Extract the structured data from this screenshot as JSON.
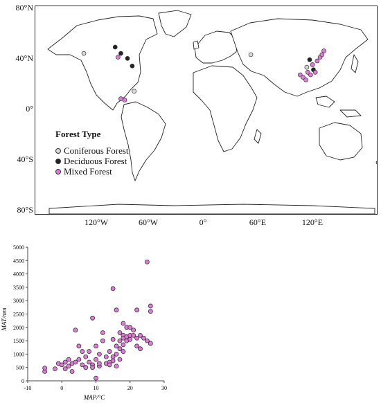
{
  "map": {
    "lat_labels": [
      "80°N",
      "40°N",
      "0°",
      "40°S",
      "80°S"
    ],
    "lon_labels": [
      "120°W",
      "60°W",
      "0°",
      "60°E",
      "120°E"
    ],
    "legend": {
      "title": "Forest Type",
      "items": [
        {
          "label": "Coniferous Forest",
          "color": "#d8d8d8"
        },
        {
          "label": "Deciduous Forest",
          "color": "#222222"
        },
        {
          "label": "Mixed Forest",
          "color": "#e07ad8"
        }
      ]
    },
    "sites": [
      {
        "type": "Coniferous Forest",
        "lon": -123,
        "lat": 45
      },
      {
        "type": "Coniferous Forest",
        "lon": -70,
        "lat": 15
      },
      {
        "type": "Coniferous Forest",
        "lon": 53,
        "lat": 44
      },
      {
        "type": "Coniferous Forest",
        "lon": 112,
        "lat": 34
      },
      {
        "type": "Deciduous Forest",
        "lon": -84,
        "lat": 45
      },
      {
        "type": "Deciduous Forest",
        "lon": -77,
        "lat": 41
      },
      {
        "type": "Deciduous Forest",
        "lon": -72,
        "lat": 35
      },
      {
        "type": "Deciduous Forest",
        "lon": -90,
        "lat": 50
      },
      {
        "type": "Deciduous Forest",
        "lon": 115,
        "lat": 40
      },
      {
        "type": "Deciduous Forest",
        "lon": 119,
        "lat": 32
      },
      {
        "type": "Mixed Forest",
        "lon": -87,
        "lat": 42
      },
      {
        "type": "Mixed Forest",
        "lon": -84,
        "lat": 9
      },
      {
        "type": "Mixed Forest",
        "lon": -80,
        "lat": 8
      },
      {
        "type": "Mixed Forest",
        "lon": 105,
        "lat": 28
      },
      {
        "type": "Mixed Forest",
        "lon": 108,
        "lat": 26
      },
      {
        "type": "Mixed Forest",
        "lon": 111,
        "lat": 24
      },
      {
        "type": "Mixed Forest",
        "lon": 113,
        "lat": 30
      },
      {
        "type": "Mixed Forest",
        "lon": 116,
        "lat": 28
      },
      {
        "type": "Mixed Forest",
        "lon": 118,
        "lat": 36
      },
      {
        "type": "Mixed Forest",
        "lon": 121,
        "lat": 30
      },
      {
        "type": "Mixed Forest",
        "lon": 123,
        "lat": 39
      },
      {
        "type": "Mixed Forest",
        "lon": 126,
        "lat": 42
      },
      {
        "type": "Mixed Forest",
        "lon": 128,
        "lat": 44
      },
      {
        "type": "Mixed Forest",
        "lon": 130,
        "lat": 47
      }
    ]
  },
  "chart_data": {
    "type": "scatter",
    "xlabel": "MAP/°C",
    "ylabel": "MAT/mm",
    "xlim": [
      -10,
      30
    ],
    "ylim": [
      0,
      5000
    ],
    "xticks": [
      "-10",
      "0",
      "10",
      "20",
      "30"
    ],
    "yticks": [
      "0",
      "500",
      "1000",
      "1500",
      "2000",
      "2500",
      "3000",
      "3500",
      "4000",
      "4500",
      "5000"
    ],
    "series": [
      {
        "color": "#e07ad8",
        "points": [
          [
            -5,
            350
          ],
          [
            -5,
            480
          ],
          [
            -2,
            450
          ],
          [
            -1,
            650
          ],
          [
            0,
            600
          ],
          [
            1,
            700
          ],
          [
            1,
            450
          ],
          [
            2,
            800
          ],
          [
            2,
            550
          ],
          [
            3,
            650
          ],
          [
            3,
            350
          ],
          [
            4,
            700
          ],
          [
            4,
            1900
          ],
          [
            5,
            800
          ],
          [
            5,
            1300
          ],
          [
            6,
            1100
          ],
          [
            6,
            600
          ],
          [
            7,
            900
          ],
          [
            7,
            500
          ],
          [
            8,
            1100
          ],
          [
            8,
            700
          ],
          [
            9,
            2350
          ],
          [
            9,
            600
          ],
          [
            9,
            500
          ],
          [
            10,
            1300
          ],
          [
            10,
            800
          ],
          [
            10,
            100
          ],
          [
            11,
            1000
          ],
          [
            11,
            550
          ],
          [
            11,
            650
          ],
          [
            12,
            1800
          ],
          [
            12,
            1500
          ],
          [
            13,
            900
          ],
          [
            13,
            650
          ],
          [
            14,
            1100
          ],
          [
            14,
            700
          ],
          [
            14,
            600
          ],
          [
            15,
            3450
          ],
          [
            15,
            1550
          ],
          [
            15,
            900
          ],
          [
            15,
            750
          ],
          [
            16,
            2650
          ],
          [
            16,
            1300
          ],
          [
            16,
            1000
          ],
          [
            16,
            550
          ],
          [
            17,
            1800
          ],
          [
            17,
            1500
          ],
          [
            17,
            1200
          ],
          [
            17,
            800
          ],
          [
            18,
            1700
          ],
          [
            18,
            1600
          ],
          [
            18,
            1350
          ],
          [
            18,
            1100
          ],
          [
            18,
            2150
          ],
          [
            19,
            2000
          ],
          [
            19,
            1650
          ],
          [
            19,
            1500
          ],
          [
            20,
            1700
          ],
          [
            20,
            1550
          ],
          [
            20,
            2000
          ],
          [
            21,
            1900
          ],
          [
            21,
            1700
          ],
          [
            22,
            1600
          ],
          [
            22,
            1300
          ],
          [
            22,
            2650
          ],
          [
            23,
            1700
          ],
          [
            23,
            1200
          ],
          [
            24,
            1600
          ],
          [
            25,
            4450
          ],
          [
            25,
            1500
          ],
          [
            26,
            2800
          ],
          [
            26,
            2600
          ],
          [
            26,
            1400
          ]
        ]
      }
    ]
  }
}
